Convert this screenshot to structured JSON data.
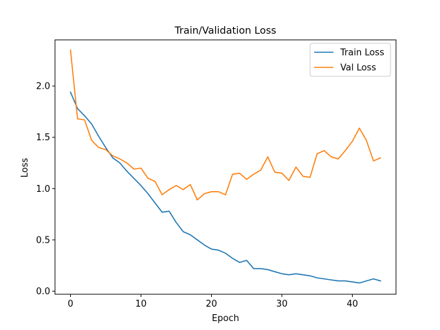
{
  "chart_data": {
    "type": "line",
    "title": "Train/Validation Loss",
    "xlabel": "Epoch",
    "ylabel": "Loss",
    "xlim": [
      -2.2,
      46.2
    ],
    "ylim": [
      -0.03,
      2.45
    ],
    "xticks": [
      0,
      10,
      20,
      30,
      40
    ],
    "xtick_labels": [
      "0",
      "10",
      "20",
      "30",
      "40"
    ],
    "yticks": [
      0.0,
      0.5,
      1.0,
      1.5,
      2.0
    ],
    "ytick_labels": [
      "0.0",
      "0.5",
      "1.0",
      "1.5",
      "2.0"
    ],
    "grid": false,
    "legend_position": "top-right",
    "x": [
      0,
      1,
      2,
      3,
      4,
      5,
      6,
      7,
      8,
      9,
      10,
      11,
      12,
      13,
      14,
      15,
      16,
      17,
      18,
      19,
      20,
      21,
      22,
      23,
      24,
      25,
      26,
      27,
      28,
      29,
      30,
      31,
      32,
      33,
      34,
      35,
      36,
      37,
      38,
      39,
      40,
      41,
      42,
      43,
      44
    ],
    "series": [
      {
        "name": "Train Loss",
        "color": "#1f77b4",
        "values": [
          1.94,
          1.78,
          1.71,
          1.63,
          1.51,
          1.4,
          1.3,
          1.25,
          1.17,
          1.1,
          1.03,
          0.95,
          0.86,
          0.77,
          0.78,
          0.67,
          0.58,
          0.55,
          0.5,
          0.45,
          0.41,
          0.4,
          0.37,
          0.32,
          0.28,
          0.3,
          0.22,
          0.22,
          0.21,
          0.19,
          0.17,
          0.16,
          0.17,
          0.16,
          0.15,
          0.13,
          0.12,
          0.11,
          0.1,
          0.1,
          0.09,
          0.08,
          0.1,
          0.12,
          0.1
        ]
      },
      {
        "name": "Val Loss",
        "color": "#ff7f0e",
        "values": [
          2.35,
          1.68,
          1.67,
          1.47,
          1.4,
          1.38,
          1.32,
          1.29,
          1.25,
          1.19,
          1.2,
          1.1,
          1.07,
          0.94,
          0.99,
          1.03,
          0.99,
          1.04,
          0.89,
          0.95,
          0.97,
          0.97,
          0.94,
          1.14,
          1.15,
          1.09,
          1.14,
          1.18,
          1.31,
          1.16,
          1.15,
          1.08,
          1.21,
          1.12,
          1.11,
          1.34,
          1.37,
          1.31,
          1.29,
          1.37,
          1.46,
          1.59,
          1.47,
          1.27,
          1.3
        ]
      }
    ]
  }
}
